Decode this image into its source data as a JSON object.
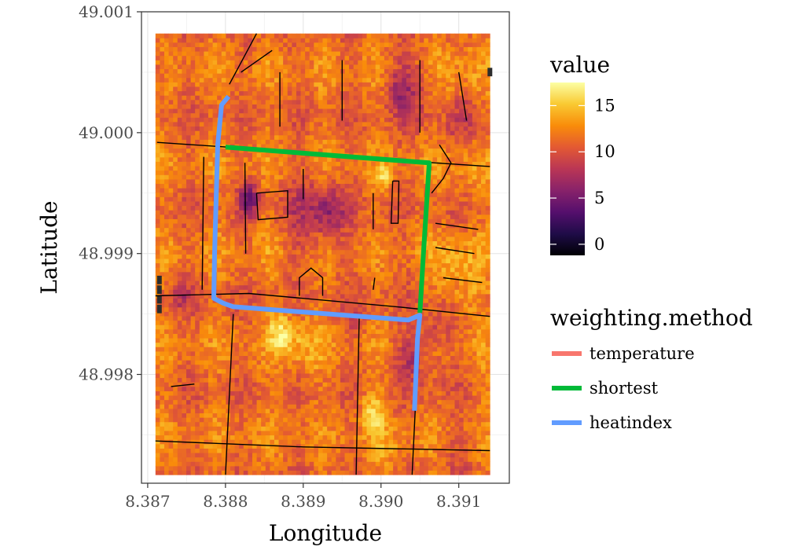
{
  "chart_data": {
    "type": "heatmap",
    "title": "",
    "xlabel": "Longitude",
    "ylabel": "Latitude",
    "xlim": [
      8.38692,
      8.39165
    ],
    "ylim": [
      48.9971,
      49.001
    ],
    "x_ticks": [
      8.387,
      8.388,
      8.389,
      8.39,
      8.391
    ],
    "x_tick_labels": [
      "8.387",
      "8.388",
      "8.389",
      "8.390",
      "8.391"
    ],
    "y_ticks": [
      48.998,
      48.999,
      49.0,
      49.001
    ],
    "y_tick_labels": [
      "48.998",
      "48.999",
      "49.000",
      "49.001"
    ],
    "grid": true,
    "raster_extent": {
      "x": [
        8.3871,
        8.3914
      ],
      "y": [
        48.99717,
        49.00082
      ]
    },
    "colorbar": {
      "title": "value",
      "min": -1.2,
      "max": 17.5,
      "ticks": [
        0,
        5,
        10,
        15
      ],
      "tick_labels": [
        "0",
        "5",
        "10",
        "15"
      ],
      "palette": [
        "#000004",
        "#1f0c48",
        "#550f6d",
        "#88226a",
        "#ba3655",
        "#e35933",
        "#f98c0a",
        "#f9c932",
        "#fcffa4"
      ]
    },
    "legend": {
      "title": "weighting.method",
      "entries": [
        {
          "name": "temperature",
          "color": "#f8766d"
        },
        {
          "name": "shortest",
          "color": "#00ba38"
        },
        {
          "name": "heatindex",
          "color": "#619cff"
        }
      ]
    },
    "routes": [
      {
        "name": "temperature",
        "color": "#f8766d",
        "points": []
      },
      {
        "name": "shortest",
        "color": "#00ba38",
        "points": [
          [
            8.388,
            48.99988
          ],
          [
            8.39062,
            48.99975
          ],
          [
            8.39055,
            48.99905
          ],
          [
            8.3905,
            48.99851
          ]
        ]
      },
      {
        "name": "heatindex",
        "color": "#619cff",
        "points": [
          [
            8.38804,
            49.0003
          ],
          [
            8.38795,
            49.00023
          ],
          [
            8.3879,
            48.9999
          ],
          [
            8.38786,
            48.999
          ],
          [
            8.38785,
            48.99863
          ],
          [
            8.38797,
            48.99859
          ],
          [
            8.3881,
            48.99856
          ],
          [
            8.39035,
            48.99845
          ],
          [
            8.3905,
            48.99849
          ],
          [
            8.39047,
            48.9983
          ],
          [
            8.39043,
            48.9977
          ]
        ]
      }
    ],
    "streets": [
      [
        [
          8.38712,
          48.99992
        ],
        [
          8.3885,
          48.99986
        ],
        [
          8.39,
          48.99978
        ],
        [
          8.3914,
          48.99972
        ]
      ],
      [
        [
          8.3871,
          48.99865
        ],
        [
          8.3883,
          48.99867
        ],
        [
          8.3902,
          48.99856
        ],
        [
          8.3914,
          48.99848
        ]
      ],
      [
        [
          8.3871,
          48.99745
        ],
        [
          8.389,
          48.9974
        ],
        [
          8.3914,
          48.99737
        ]
      ],
      [
        [
          8.3881,
          48.9985
        ],
        [
          8.388,
          48.99717
        ]
      ],
      [
        [
          8.38972,
          48.99848
        ],
        [
          8.38968,
          48.99717
        ]
      ],
      [
        [
          8.3905,
          48.9985
        ],
        [
          8.3904,
          48.99717
        ]
      ],
      [
        [
          8.38805,
          49.0004
        ],
        [
          8.3883,
          49.0007
        ],
        [
          8.3884,
          49.00082
        ]
      ],
      [
        [
          8.3882,
          49.0005
        ],
        [
          8.3886,
          49.00068
        ]
      ],
      [
        [
          8.38825,
          48.99975
        ],
        [
          8.38826,
          48.999
        ]
      ],
      [
        [
          8.3884,
          48.9995
        ],
        [
          8.3888,
          48.99952
        ],
        [
          8.3888,
          48.9993
        ],
        [
          8.38842,
          48.99928
        ],
        [
          8.3884,
          48.9995
        ]
      ],
      [
        [
          8.3899,
          48.9987
        ],
        [
          8.38992,
          48.9988
        ]
      ],
      [
        [
          8.38895,
          48.99865
        ],
        [
          8.38895,
          48.9988
        ],
        [
          8.3891,
          48.99888
        ],
        [
          8.38925,
          48.9988
        ],
        [
          8.38925,
          48.99865
        ]
      ],
      [
        [
          8.39015,
          48.9996
        ],
        [
          8.39013,
          48.99925
        ],
        [
          8.39022,
          48.99925
        ],
        [
          8.39023,
          48.9996
        ],
        [
          8.39015,
          48.9996
        ]
      ],
      [
        [
          8.39075,
          48.9999
        ],
        [
          8.3909,
          48.99975
        ],
        [
          8.3908,
          48.99962
        ],
        [
          8.39065,
          48.9995
        ]
      ],
      [
        [
          8.3907,
          48.99925
        ],
        [
          8.39125,
          48.9992
        ]
      ],
      [
        [
          8.3907,
          48.99905
        ],
        [
          8.3912,
          48.999
        ]
      ],
      [
        [
          8.3908,
          48.9988
        ],
        [
          8.3913,
          48.99876
        ]
      ],
      [
        [
          8.3887,
          49.0005
        ],
        [
          8.3887,
          49.00005
        ]
      ],
      [
        [
          8.3895,
          49.0006
        ],
        [
          8.3895,
          49.0001
        ]
      ],
      [
        [
          8.3905,
          49.0006
        ],
        [
          8.3905,
          49.0
        ]
      ],
      [
        [
          8.391,
          49.0005
        ],
        [
          8.3911,
          49.0001
        ]
      ],
      [
        [
          8.3877,
          48.9987
        ],
        [
          8.38772,
          48.9998
        ]
      ],
      [
        [
          8.3873,
          48.9979
        ],
        [
          8.3876,
          48.99792
        ]
      ],
      [
        [
          8.389,
          48.9997
        ],
        [
          8.389,
          48.99945
        ]
      ],
      [
        [
          8.3899,
          48.9995
        ],
        [
          8.3899,
          48.9992
        ]
      ]
    ],
    "dark_patches": [
      [
        8.38712,
        48.99878
      ],
      [
        8.38712,
        48.9987
      ],
      [
        8.38712,
        48.99862
      ],
      [
        8.38712,
        48.99854
      ],
      [
        8.39137,
        49.0005
      ]
    ]
  }
}
